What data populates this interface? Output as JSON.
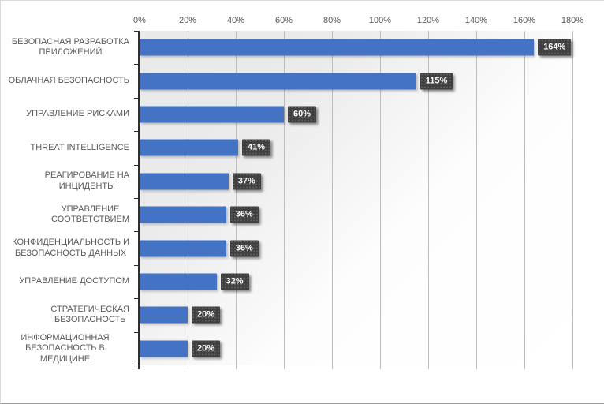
{
  "chart_data": {
    "type": "bar",
    "orientation": "horizontal",
    "title": "",
    "xlabel": "",
    "ylabel": "",
    "legend": "none",
    "grid": "vertical-major-gridlines",
    "value_axis_position": "top",
    "xlim": [
      0,
      180
    ],
    "x_tick_labels": [
      "0%",
      "20%",
      "40%",
      "60%",
      "80%",
      "100%",
      "120%",
      "140%",
      "160%",
      "180%"
    ],
    "categories": [
      "БЕЗОПАСНАЯ РАЗРАБОТКА\nПРИЛОЖЕНИЙ",
      "ОБЛАЧНАЯ БЕЗОПАСНОСТЬ",
      "УПРАВЛЕНИЕ РИСКАМИ",
      "THREAT INTELLIGENCE",
      "РЕАГИРОВАНИЕ НА\nИНЦИДЕНТЫ",
      "УПРАВЛЕНИЕ\nСООТВЕТСТВИЕМ",
      "КОНФИДЕНЦИАЛЬНОСТЬ И\nБЕЗОПАСНОСТЬ ДАННЫХ",
      "УПРАВЛЕНИЕ ДОСТУПОМ",
      "СТРАТЕГИЧЕСКАЯ\nБЕЗОПАСНОСТЬ",
      "ИНФОРМАЦИОННАЯ\nБЕЗОПАСНОСТЬ В МЕДИЦИНЕ"
    ],
    "values": [
      164,
      115,
      60,
      41,
      37,
      36,
      36,
      32,
      20,
      20
    ],
    "value_labels": [
      "164%",
      "115%",
      "60%",
      "41%",
      "37%",
      "36%",
      "36%",
      "32%",
      "20%",
      "20%"
    ],
    "colors": {
      "bar": "#4472C4",
      "value_label_box": "#3F3F3F",
      "value_label_text": "#FFFFFF",
      "axis_text": "#595959",
      "gridline": "#BDBDBD",
      "axis_line": "#2E2E2E",
      "plot_gradient_start": "#E9E9E9",
      "plot_gradient_end": "#FFFFFF"
    }
  }
}
